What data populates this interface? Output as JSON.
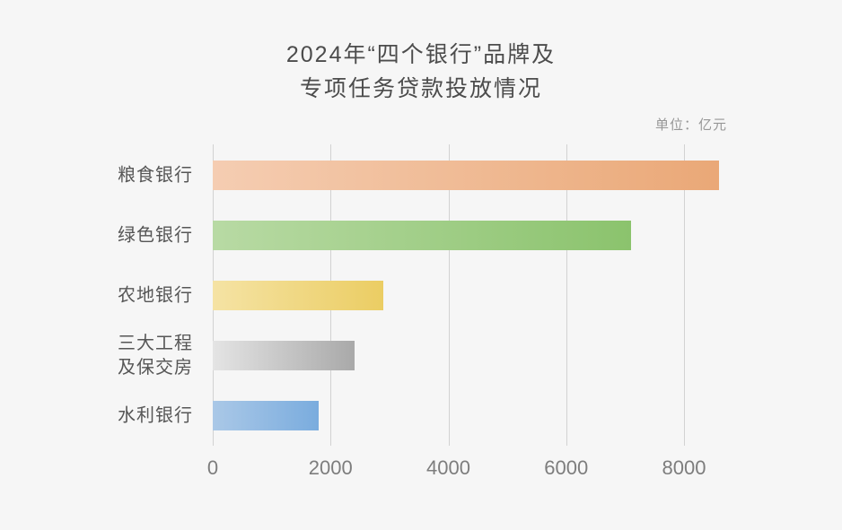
{
  "title": {
    "line1": "2024年“四个银行”品牌及",
    "line2": "专项任务贷款投放情况"
  },
  "unit_label": "单位：亿元",
  "colors": {
    "background": "#f6f6f6",
    "gridline": "#d2d2d2",
    "title_text": "#4c4c4c",
    "category_text": "#565656",
    "tick_text": "#7d7d7d",
    "unit_text": "#979797"
  },
  "chart_data": {
    "type": "bar",
    "orientation": "horizontal",
    "title": "2024年“四个银行”品牌及专项任务贷款投放情况",
    "unit": "亿元",
    "categories": [
      "粮食银行",
      "绿色银行",
      "农地银行",
      "三大工程\n及保交房",
      "水利银行"
    ],
    "values": [
      8600,
      7100,
      2900,
      2400,
      1800
    ],
    "bar_gradients": [
      {
        "start": "#f5cdb2",
        "end": "#eaa877"
      },
      {
        "start": "#b8daa4",
        "end": "#8bc36d"
      },
      {
        "start": "#f5e3a4",
        "end": "#ebcd63"
      },
      {
        "start": "#e4e4e4",
        "end": "#a9a9a9"
      },
      {
        "start": "#aac8e7",
        "end": "#7aacde"
      }
    ],
    "x_ticks": [
      "0",
      "2000",
      "4000",
      "6000",
      "8000"
    ],
    "x_tick_values": [
      0,
      2000,
      4000,
      6000,
      8000
    ],
    "xlim": [
      0,
      9150
    ],
    "grid": true,
    "legend": false
  }
}
